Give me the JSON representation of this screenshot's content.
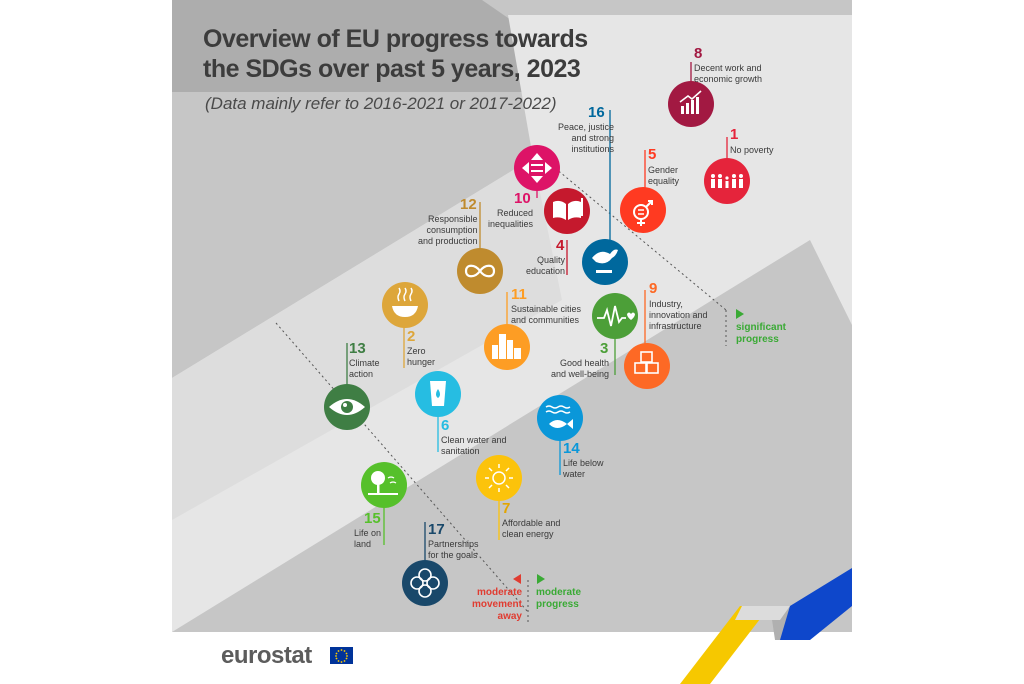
{
  "title_line1": "Overview of EU progress towards",
  "title_line2": "the SDGs over past 5 years, 2023",
  "subtitle": "(Data mainly refer to 2016-2021 or 2017-2022)",
  "goals": [
    {
      "num": "8",
      "label": "Decent work and\neconomic growth",
      "color": "#a21942",
      "icon": "chart-growth-icon"
    },
    {
      "num": "1",
      "label": "No poverty",
      "color": "#e5243b",
      "icon": "people-icon"
    },
    {
      "num": "16",
      "label": "Peace, justice\nand strong\ninstitutions",
      "color": "#00689d",
      "icon": "dove-gavel-icon"
    },
    {
      "num": "5",
      "label": "Gender\nequality",
      "color": "#ff3a21",
      "icon": "gender-equality-icon"
    },
    {
      "num": "10",
      "label": "Reduced\ninequalities",
      "color": "#dd1367",
      "icon": "equality-arrows-icon"
    },
    {
      "num": "4",
      "label": "Quality\neducation",
      "color": "#c5192d",
      "icon": "book-icon"
    },
    {
      "num": "12",
      "label": "Responsible\nconsumption\nand production",
      "color": "#bf8b2e",
      "icon": "infinity-icon"
    },
    {
      "num": "9",
      "label": "Industry,\ninnovation and\ninfrastructure",
      "color": "#fd6925",
      "icon": "cubes-icon"
    },
    {
      "num": "11",
      "label": "Sustainable cities\nand communities",
      "color": "#fd9d24",
      "icon": "city-icon"
    },
    {
      "num": "2",
      "label": "Zero\nhunger",
      "color": "#dda63a",
      "icon": "bowl-icon"
    },
    {
      "num": "3",
      "label": "Good health\nand well-being",
      "color": "#4c9f38",
      "icon": "heartbeat-icon"
    },
    {
      "num": "13",
      "label": "Climate\naction",
      "color": "#3f7e44",
      "icon": "eye-globe-icon"
    },
    {
      "num": "6",
      "label": "Clean water and\nsanitation",
      "color": "#26bde2",
      "icon": "water-glass-icon"
    },
    {
      "num": "14",
      "label": "Life below\nwater",
      "color": "#0a97d9",
      "icon": "fish-icon"
    },
    {
      "num": "15",
      "label": "Life on\nland",
      "color": "#56c02b",
      "icon": "tree-icon"
    },
    {
      "num": "7",
      "label": "Affordable and\nclean energy",
      "color": "#fcc30b",
      "icon": "sun-icon"
    },
    {
      "num": "17",
      "label": "Partnerships\nfor the goals",
      "color": "#19486a",
      "icon": "rings-icon"
    }
  ],
  "legend": {
    "significant": "significant\nprogress",
    "moderate": "moderate\nprogress",
    "away": "moderate\nmovement\naway",
    "progress_color": "#3aaa35",
    "away_color": "#e03c31"
  },
  "brand": "eurostat"
}
